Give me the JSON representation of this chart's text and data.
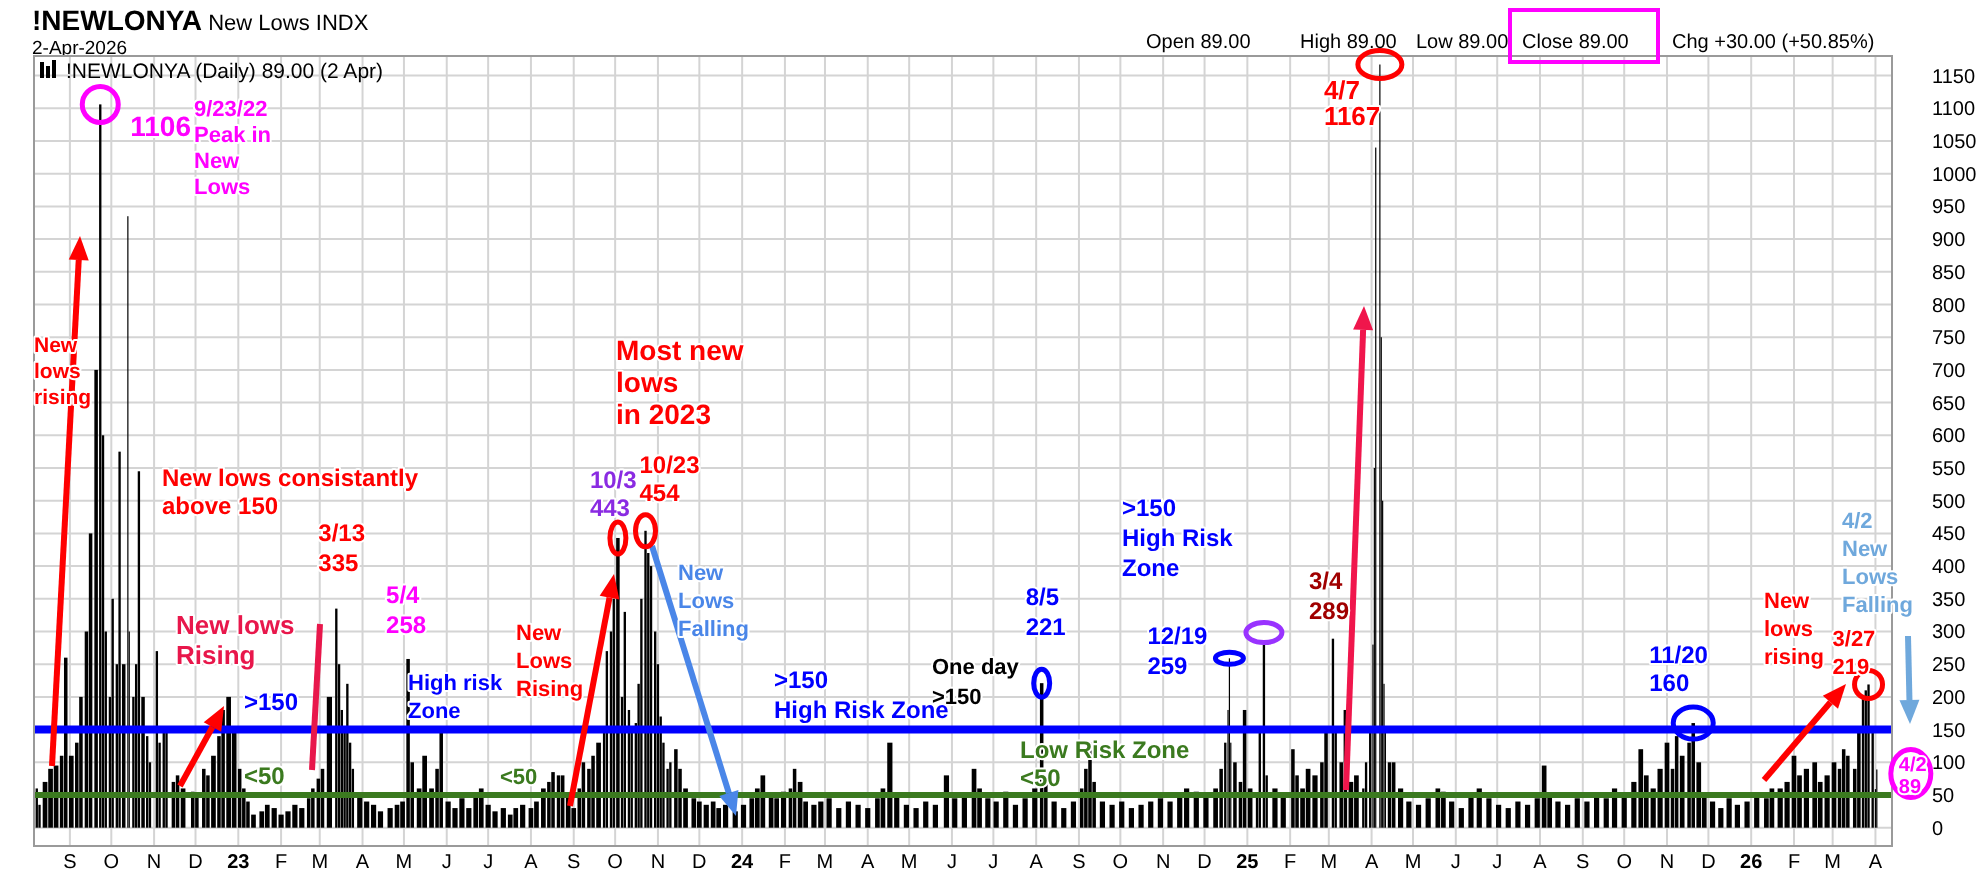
{
  "chart_data": {
    "type": "bar",
    "title": "!NEWLONYA New Lows INDX",
    "subtitle": "2-Apr-2026",
    "color": "#000000",
    "grid": true,
    "xlim": [
      "2022-08-06",
      "2026-04-13"
    ],
    "ylim": [
      -28,
      1180
    ],
    "yticks": [
      0,
      50,
      100,
      150,
      200,
      250,
      300,
      350,
      400,
      450,
      500,
      550,
      600,
      650,
      700,
      750,
      800,
      850,
      900,
      950,
      1000,
      1050,
      1100,
      1150
    ],
    "xticks": [
      {
        "value": "2022-09-01",
        "label": "S"
      },
      {
        "value": "2022-10-01",
        "label": "O"
      },
      {
        "value": "2022-11-01",
        "label": "N"
      },
      {
        "value": "2022-12-01",
        "label": "D"
      },
      {
        "value": "2023-01-01",
        "label": "23"
      },
      {
        "value": "2023-02-01",
        "label": "F"
      },
      {
        "value": "2023-03-01",
        "label": "M"
      },
      {
        "value": "2023-04-01",
        "label": "A"
      },
      {
        "value": "2023-05-01",
        "label": "M"
      },
      {
        "value": "2023-06-01",
        "label": "J"
      },
      {
        "value": "2023-07-01",
        "label": "J"
      },
      {
        "value": "2023-08-01",
        "label": "A"
      },
      {
        "value": "2023-09-01",
        "label": "S"
      },
      {
        "value": "2023-10-01",
        "label": "O"
      },
      {
        "value": "2023-11-01",
        "label": "N"
      },
      {
        "value": "2023-12-01",
        "label": "D"
      },
      {
        "value": "2024-01-01",
        "label": "24"
      },
      {
        "value": "2024-02-01",
        "label": "F"
      },
      {
        "value": "2024-03-01",
        "label": "M"
      },
      {
        "value": "2024-04-01",
        "label": "A"
      },
      {
        "value": "2024-05-01",
        "label": "M"
      },
      {
        "value": "2024-06-01",
        "label": "J"
      },
      {
        "value": "2024-07-01",
        "label": "J"
      },
      {
        "value": "2024-08-01",
        "label": "A"
      },
      {
        "value": "2024-09-01",
        "label": "S"
      },
      {
        "value": "2024-10-01",
        "label": "O"
      },
      {
        "value": "2024-11-01",
        "label": "N"
      },
      {
        "value": "2024-12-01",
        "label": "D"
      },
      {
        "value": "2025-01-01",
        "label": "25"
      },
      {
        "value": "2025-02-01",
        "label": "F"
      },
      {
        "value": "2025-03-01",
        "label": "M"
      },
      {
        "value": "2025-04-01",
        "label": "A"
      },
      {
        "value": "2025-05-01",
        "label": "M"
      },
      {
        "value": "2025-06-01",
        "label": "J"
      },
      {
        "value": "2025-07-01",
        "label": "J"
      },
      {
        "value": "2025-08-01",
        "label": "A"
      },
      {
        "value": "2025-09-01",
        "label": "S"
      },
      {
        "value": "2025-10-01",
        "label": "O"
      },
      {
        "value": "2025-11-01",
        "label": "N"
      },
      {
        "value": "2025-12-01",
        "label": "D"
      },
      {
        "value": "2026-01-01",
        "label": "26"
      },
      {
        "value": "2026-02-01",
        "label": "F"
      },
      {
        "value": "2026-03-01",
        "label": "M"
      },
      {
        "value": "2026-04-01",
        "label": "A"
      }
    ],
    "x": [
      "2022-08-08",
      "2022-08-10",
      "2022-08-14",
      "2022-08-18",
      "2022-08-22",
      "2022-08-26",
      "2022-08-29",
      "2022-09-02",
      "2022-09-06",
      "2022-09-09",
      "2022-09-13",
      "2022-09-16",
      "2022-09-20",
      "2022-09-23",
      "2022-09-25",
      "2022-09-27",
      "2022-09-30",
      "2022-10-02",
      "2022-10-05",
      "2022-10-07",
      "2022-10-10",
      "2022-10-13",
      "2022-10-14",
      "2022-10-17",
      "2022-10-19",
      "2022-10-21",
      "2022-10-24",
      "2022-10-27",
      "2022-10-29",
      "2022-11-03",
      "2022-11-05",
      "2022-11-08",
      "2022-11-10",
      "2022-11-15",
      "2022-11-18",
      "2022-11-22",
      "2022-11-29",
      "2022-12-02",
      "2022-12-07",
      "2022-12-10",
      "2022-12-14",
      "2022-12-18",
      "2022-12-21",
      "2022-12-25",
      "2022-12-29",
      "2023-01-02",
      "2023-01-05",
      "2023-01-08",
      "2023-01-12",
      "2023-01-18",
      "2023-01-22",
      "2023-01-27",
      "2023-02-01",
      "2023-02-06",
      "2023-02-11",
      "2023-02-16",
      "2023-02-21",
      "2023-02-24",
      "2023-02-28",
      "2023-03-03",
      "2023-03-08",
      "2023-03-13",
      "2023-03-15",
      "2023-03-17",
      "2023-03-19",
      "2023-03-21",
      "2023-03-23",
      "2023-03-25",
      "2023-03-30",
      "2023-04-04",
      "2023-04-09",
      "2023-04-14",
      "2023-04-21",
      "2023-04-26",
      "2023-04-30",
      "2023-05-04",
      "2023-05-07",
      "2023-05-12",
      "2023-05-16",
      "2023-05-21",
      "2023-05-25",
      "2023-05-28",
      "2023-06-02",
      "2023-06-07",
      "2023-06-12",
      "2023-06-17",
      "2023-06-22",
      "2023-06-26",
      "2023-07-01",
      "2023-07-06",
      "2023-07-12",
      "2023-07-17",
      "2023-07-21",
      "2023-07-26",
      "2023-08-01",
      "2023-08-05",
      "2023-08-10",
      "2023-08-14",
      "2023-08-17",
      "2023-08-21",
      "2023-08-24",
      "2023-08-28",
      "2023-09-01",
      "2023-09-05",
      "2023-09-08",
      "2023-09-12",
      "2023-09-15",
      "2023-09-19",
      "2023-09-23",
      "2023-09-25",
      "2023-09-28",
      "2023-09-30",
      "2023-10-03",
      "2023-10-06",
      "2023-10-08",
      "2023-10-11",
      "2023-10-13",
      "2023-10-16",
      "2023-10-18",
      "2023-10-20",
      "2023-10-23",
      "2023-10-25",
      "2023-10-27",
      "2023-10-30",
      "2023-11-01",
      "2023-11-03",
      "2023-11-05",
      "2023-11-08",
      "2023-11-10",
      "2023-11-14",
      "2023-11-17",
      "2023-11-21",
      "2023-11-27",
      "2023-12-01",
      "2023-12-06",
      "2023-12-11",
      "2023-12-15",
      "2023-12-20",
      "2023-12-27",
      "2024-01-02",
      "2024-01-08",
      "2024-01-12",
      "2024-01-16",
      "2024-01-22",
      "2024-01-26",
      "2024-01-31",
      "2024-02-05",
      "2024-02-08",
      "2024-02-12",
      "2024-02-16",
      "2024-02-22",
      "2024-02-27",
      "2024-03-04",
      "2024-03-11",
      "2024-03-18",
      "2024-03-25",
      "2024-04-01",
      "2024-04-08",
      "2024-04-12",
      "2024-04-17",
      "2024-04-22",
      "2024-04-29",
      "2024-05-06",
      "2024-05-13",
      "2024-05-20",
      "2024-05-28",
      "2024-06-03",
      "2024-06-10",
      "2024-06-17",
      "2024-06-21",
      "2024-06-27",
      "2024-07-03",
      "2024-07-10",
      "2024-07-17",
      "2024-07-24",
      "2024-07-31",
      "2024-08-05",
      "2024-08-08",
      "2024-08-14",
      "2024-08-21",
      "2024-08-28",
      "2024-09-03",
      "2024-09-06",
      "2024-09-09",
      "2024-09-12",
      "2024-09-18",
      "2024-09-25",
      "2024-10-02",
      "2024-10-09",
      "2024-10-16",
      "2024-10-23",
      "2024-10-30",
      "2024-11-06",
      "2024-11-13",
      "2024-11-18",
      "2024-11-25",
      "2024-12-02",
      "2024-12-09",
      "2024-12-13",
      "2024-12-16",
      "2024-12-18",
      "2024-12-19",
      "2024-12-20",
      "2024-12-23",
      "2024-12-27",
      "2024-12-30",
      "2025-01-03",
      "2025-01-08",
      "2025-01-10",
      "2025-01-13",
      "2025-01-15",
      "2025-01-21",
      "2025-01-27",
      "2025-02-03",
      "2025-02-06",
      "2025-02-10",
      "2025-02-14",
      "2025-02-19",
      "2025-02-24",
      "2025-02-27",
      "2025-03-04",
      "2025-03-06",
      "2025-03-10",
      "2025-03-13",
      "2025-03-17",
      "2025-03-21",
      "2025-03-26",
      "2025-03-28",
      "2025-03-31",
      "2025-04-02",
      "2025-04-03",
      "2025-04-04",
      "2025-04-07",
      "2025-04-08",
      "2025-04-09",
      "2025-04-10",
      "2025-04-11",
      "2025-04-14",
      "2025-04-17",
      "2025-04-22",
      "2025-04-28",
      "2025-05-05",
      "2025-05-12",
      "2025-05-19",
      "2025-05-23",
      "2025-05-29",
      "2025-06-05",
      "2025-06-12",
      "2025-06-18",
      "2025-06-25",
      "2025-07-02",
      "2025-07-09",
      "2025-07-16",
      "2025-07-23",
      "2025-07-30",
      "2025-08-04",
      "2025-08-08",
      "2025-08-14",
      "2025-08-21",
      "2025-08-28",
      "2025-09-04",
      "2025-09-11",
      "2025-09-18",
      "2025-09-24",
      "2025-10-01",
      "2025-10-08",
      "2025-10-13",
      "2025-10-17",
      "2025-10-22",
      "2025-10-27",
      "2025-11-01",
      "2025-11-05",
      "2025-11-08",
      "2025-11-12",
      "2025-11-17",
      "2025-11-20",
      "2025-11-24",
      "2025-11-28",
      "2025-12-04",
      "2025-12-10",
      "2025-12-16",
      "2025-12-22",
      "2025-12-29",
      "2026-01-05",
      "2026-01-12",
      "2026-01-16",
      "2026-01-22",
      "2026-01-27",
      "2026-02-01",
      "2026-02-05",
      "2026-02-10",
      "2026-02-16",
      "2026-02-20",
      "2026-02-25",
      "2026-03-02",
      "2026-03-06",
      "2026-03-09",
      "2026-03-12",
      "2026-03-17",
      "2026-03-20",
      "2026-03-23",
      "2026-03-25",
      "2026-03-27",
      "2026-03-30",
      "2026-04-01",
      "2026-04-02"
    ],
    "values": [
      60,
      35,
      70,
      90,
      95,
      110,
      260,
      110,
      130,
      200,
      300,
      450,
      700,
      1106,
      600,
      300,
      200,
      350,
      250,
      575,
      250,
      935,
      300,
      200,
      250,
      545,
      200,
      140,
      100,
      270,
      130,
      150,
      150,
      70,
      80,
      60,
      55,
      50,
      90,
      80,
      110,
      140,
      180,
      200,
      150,
      90,
      60,
      40,
      20,
      25,
      35,
      30,
      20,
      25,
      35,
      30,
      45,
      60,
      75,
      90,
      200,
      335,
      250,
      180,
      150,
      220,
      130,
      90,
      50,
      40,
      35,
      25,
      30,
      35,
      40,
      258,
      100,
      60,
      110,
      60,
      90,
      150,
      40,
      30,
      45,
      30,
      50,
      60,
      35,
      25,
      30,
      20,
      30,
      35,
      30,
      40,
      60,
      70,
      85,
      80,
      80,
      50,
      30,
      60,
      100,
      90,
      110,
      130,
      150,
      270,
      300,
      350,
      443,
      200,
      330,
      180,
      150,
      160,
      220,
      350,
      454,
      420,
      400,
      300,
      250,
      170,
      130,
      90,
      100,
      120,
      90,
      60,
      45,
      40,
      35,
      40,
      30,
      35,
      25,
      35,
      45,
      60,
      80,
      50,
      45,
      55,
      60,
      90,
      70,
      40,
      35,
      40,
      45,
      30,
      40,
      35,
      30,
      45,
      60,
      130,
      50,
      35,
      30,
      40,
      35,
      80,
      45,
      50,
      90,
      60,
      45,
      40,
      55,
      35,
      45,
      60,
      221,
      70,
      40,
      30,
      40,
      60,
      90,
      130,
      70,
      40,
      35,
      40,
      30,
      35,
      40,
      45,
      40,
      50,
      60,
      55,
      50,
      60,
      90,
      130,
      180,
      259,
      130,
      100,
      70,
      180,
      60,
      50,
      150,
      280,
      80,
      60,
      50,
      120,
      80,
      60,
      90,
      80,
      100,
      150,
      289,
      150,
      100,
      180,
      70,
      80,
      60,
      100,
      150,
      280,
      550,
      1040,
      1167,
      750,
      500,
      220,
      150,
      100,
      100,
      60,
      40,
      35,
      45,
      60,
      55,
      40,
      30,
      50,
      60,
      45,
      35,
      30,
      40,
      35,
      45,
      95,
      50,
      40,
      35,
      45,
      40,
      50,
      45,
      60,
      50,
      70,
      120,
      80,
      60,
      90,
      130,
      90,
      140,
      110,
      130,
      160,
      100,
      50,
      40,
      30,
      45,
      35,
      40,
      50,
      45,
      60,
      60,
      70,
      110,
      80,
      90,
      100,
      70,
      80,
      100,
      90,
      120,
      110,
      90,
      150,
      200,
      210,
      219,
      150,
      59,
      89
    ],
    "ref_lines": [
      {
        "axis": "y",
        "value": 150,
        "color": "#0000ff"
      },
      {
        "axis": "y",
        "value": 50,
        "color": "#3b7a1f"
      }
    ],
    "annotations": [
      "!NEWLONYA (Daily) 89.00 (2 Apr)",
      "Open 89.00  High 89.00  Low 89.00  Close 89.00  Chg +30.00 (+50.85%)",
      {
        "text": "1106",
        "x": "2022-09-23",
        "y": 1106
      },
      "9/23/22\nPeak in\nNew\nLows",
      "New\nlows\nrising",
      "New lows consistantly\nabove 150",
      "New lows\nRising",
      ">150",
      "<50",
      {
        "text": "3/13\n335",
        "x": "2023-03-13",
        "y": 335
      },
      {
        "text": "5/4\n258",
        "x": "2023-05-04",
        "y": 258
      },
      "High risk\nZone",
      "<50",
      "New\nLows\nRising",
      "Most new\nlows\nin 2023",
      {
        "text": "10/3\n443",
        "x": "2023-10-03",
        "y": 443
      },
      {
        "text": "10/23\n454",
        "x": "2023-10-23",
        "y": 454
      },
      "New\nLows\nFalling",
      ">150\nHigh Risk Zone",
      "One day\n>150",
      {
        "text": "8/5\n221",
        "x": "2024-08-05",
        "y": 221
      },
      "Low Risk Zone\n<50",
      ">150\nHigh Risk\nZone",
      {
        "text": "12/19\n259",
        "x": "2024-12-19",
        "y": 259
      },
      {
        "text": "3/4\n289",
        "x": "2025-03-04",
        "y": 289
      },
      {
        "text": "4/7\n1167",
        "x": "2025-04-07",
        "y": 1167
      },
      {
        "text": "11/20\n160",
        "x": "2025-11-20",
        "y": 160
      },
      "New\nlows\nrising",
      {
        "text": "3/27\n219",
        "x": "2026-03-27",
        "y": 219
      },
      "4/2\nNew\nLows\nFalling",
      {
        "text": "4/2\n89",
        "x": "2026-04-02",
        "y": 89
      }
    ]
  }
}
